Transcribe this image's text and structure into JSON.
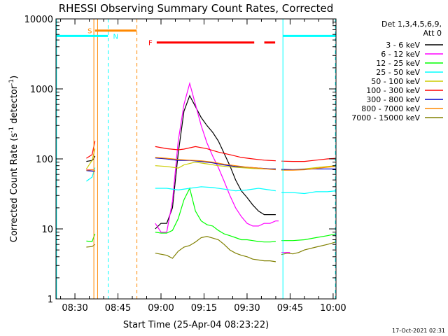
{
  "chart_data": {
    "type": "line",
    "title": "RHESSI Observing Summary Count Rates, Corrected",
    "xlabel": "Start Time (25-Apr-04 08:23:22)",
    "ylabel_main": "Corrected Count Rate (s",
    "ylabel_sup1": "-1",
    "ylabel_mid": " detector",
    "ylabel_sup2": "-1",
    "ylabel_end": ")",
    "footer": "17-Oct-2021 02:31",
    "x_unit": "minutes after 08:00",
    "xlim": [
      23.4,
      121
    ],
    "y_scale": "log",
    "ylim": [
      1,
      10000
    ],
    "x_ticks": [
      {
        "value": 30,
        "label": "08:30"
      },
      {
        "value": 45,
        "label": "08:45"
      },
      {
        "value": 60,
        "label": "09:00"
      },
      {
        "value": 75,
        "label": "09:15"
      },
      {
        "value": 90,
        "label": "09:30"
      },
      {
        "value": 105,
        "label": "09:45"
      },
      {
        "value": 120,
        "label": "10:00"
      }
    ],
    "y_ticks": [
      {
        "value": 1,
        "label": "1"
      },
      {
        "value": 10,
        "label": "10"
      },
      {
        "value": 100,
        "label": "100"
      },
      {
        "value": 1000,
        "label": "1000"
      },
      {
        "value": 10000,
        "label": "10000"
      }
    ],
    "legend": {
      "header": [
        "Det 1,3,4,5,6,9,",
        "Att 0"
      ],
      "position": "right"
    },
    "series": [
      {
        "name": "3 - 6 keV",
        "color": "#000000",
        "segments": [
          [
            [
              34,
              92
            ],
            [
              36,
              95
            ],
            [
              36.5,
              100
            ],
            [
              37,
              110
            ]
          ],
          [
            [
              58,
              10
            ],
            [
              60,
              12
            ],
            [
              62,
              12
            ],
            [
              64,
              20
            ],
            [
              66,
              120
            ],
            [
              68,
              480
            ],
            [
              70,
              800
            ],
            [
              72,
              560
            ],
            [
              74,
              390
            ],
            [
              76,
              300
            ],
            [
              78,
              240
            ],
            [
              80,
              180
            ],
            [
              82,
              120
            ],
            [
              84,
              80
            ],
            [
              86,
              50
            ],
            [
              88,
              35
            ],
            [
              90,
              28
            ],
            [
              92,
              22
            ],
            [
              94,
              18
            ],
            [
              96,
              16
            ],
            [
              98,
              16
            ],
            [
              100,
              16
            ]
          ]
        ]
      },
      {
        "name": "6 - 12 keV",
        "color": "#ff00ff",
        "segments": [
          [
            [
              34,
              70
            ],
            [
              36,
              70
            ],
            [
              36.5,
              70
            ]
          ],
          [
            [
              58,
              12
            ],
            [
              60,
              9
            ],
            [
              62,
              9
            ],
            [
              64,
              25
            ],
            [
              66,
              180
            ],
            [
              68,
              600
            ],
            [
              70,
              1200
            ],
            [
              72,
              600
            ],
            [
              74,
              300
            ],
            [
              76,
              170
            ],
            [
              78,
              110
            ],
            [
              80,
              75
            ],
            [
              82,
              48
            ],
            [
              84,
              30
            ],
            [
              86,
              20
            ],
            [
              88,
              15
            ],
            [
              90,
              12
            ],
            [
              92,
              11
            ],
            [
              94,
              11
            ],
            [
              96,
              12
            ],
            [
              98,
              12
            ],
            [
              100,
              13
            ],
            [
              101,
              13
            ]
          ],
          [
            [
              102,
              4.6
            ],
            [
              104,
              4.6
            ],
            [
              105,
              4.6
            ]
          ]
        ]
      },
      {
        "name": "12 - 25 keV",
        "color": "#00ff00",
        "segments": [
          [
            [
              34,
              6.7
            ],
            [
              36,
              6.6
            ],
            [
              37,
              8.5
            ]
          ],
          [
            [
              58,
              9
            ],
            [
              60,
              8.7
            ],
            [
              62,
              8.7
            ],
            [
              64,
              9.5
            ],
            [
              66,
              14
            ],
            [
              68,
              26
            ],
            [
              70,
              38
            ],
            [
              72,
              18
            ],
            [
              74,
              13
            ],
            [
              76,
              11.5
            ],
            [
              78,
              11
            ],
            [
              80,
              9.5
            ],
            [
              82,
              8.5
            ],
            [
              84,
              8
            ],
            [
              86,
              7.5
            ],
            [
              88,
              7
            ],
            [
              90,
              7
            ],
            [
              92,
              6.8
            ],
            [
              94,
              6.6
            ],
            [
              96,
              6.5
            ],
            [
              98,
              6.5
            ],
            [
              100,
              6.6
            ]
          ],
          [
            [
              102,
              6.8
            ],
            [
              106,
              6.8
            ],
            [
              110,
              7
            ],
            [
              114,
              7.5
            ],
            [
              118,
              8
            ],
            [
              121,
              8.5
            ]
          ]
        ]
      },
      {
        "name": "25 - 50 keV",
        "color": "#00ffff",
        "segments": [
          [
            [
              34,
              48
            ],
            [
              36,
              55
            ],
            [
              37,
              75
            ]
          ],
          [
            [
              58,
              38
            ],
            [
              62,
              38
            ],
            [
              66,
              36
            ],
            [
              70,
              38
            ],
            [
              74,
              40
            ],
            [
              78,
              39
            ],
            [
              82,
              37
            ],
            [
              86,
              35
            ],
            [
              90,
              36
            ],
            [
              94,
              38
            ],
            [
              98,
              36
            ],
            [
              100,
              35
            ]
          ],
          [
            [
              102,
              33
            ],
            [
              106,
              33
            ],
            [
              110,
              32
            ],
            [
              114,
              34
            ],
            [
              118,
              34
            ],
            [
              121,
              35
            ]
          ]
        ]
      },
      {
        "name": "50 - 100 keV",
        "color": "#cccc00",
        "segments": [
          [
            [
              34,
              72
            ],
            [
              36,
              95
            ],
            [
              37,
              140
            ]
          ],
          [
            [
              58,
              80
            ],
            [
              62,
              78
            ],
            [
              66,
              74
            ],
            [
              68,
              82
            ],
            [
              72,
              90
            ],
            [
              76,
              85
            ],
            [
              80,
              80
            ],
            [
              84,
              77
            ],
            [
              88,
              75
            ],
            [
              92,
              73
            ],
            [
              96,
              72
            ],
            [
              100,
              72
            ]
          ],
          [
            [
              102,
              71
            ],
            [
              106,
              70
            ],
            [
              110,
              72
            ],
            [
              114,
              75
            ],
            [
              118,
              78
            ],
            [
              121,
              80
            ]
          ]
        ]
      },
      {
        "name": "100 - 300 keV",
        "color": "#ff0000",
        "segments": [
          [
            [
              34,
              102
            ],
            [
              36,
              115
            ],
            [
              37,
              180
            ]
          ],
          [
            [
              58,
              150
            ],
            [
              62,
              140
            ],
            [
              66,
              135
            ],
            [
              68,
              138
            ],
            [
              72,
              150
            ],
            [
              76,
              140
            ],
            [
              80,
              125
            ],
            [
              84,
              115
            ],
            [
              88,
              105
            ],
            [
              92,
              100
            ],
            [
              96,
              96
            ],
            [
              100,
              94
            ]
          ],
          [
            [
              102,
              93
            ],
            [
              106,
              92
            ],
            [
              110,
              92
            ],
            [
              114,
              96
            ],
            [
              118,
              100
            ],
            [
              121,
              102
            ]
          ]
        ]
      },
      {
        "name": "300 - 800 keV",
        "color": "#0000cc",
        "segments": [
          [
            [
              34,
              68
            ],
            [
              36,
              67
            ],
            [
              37,
              66
            ]
          ],
          [
            [
              58,
              103
            ],
            [
              62,
              100
            ],
            [
              66,
              95
            ],
            [
              70,
              95
            ],
            [
              74,
              92
            ],
            [
              78,
              88
            ],
            [
              82,
              82
            ],
            [
              86,
              78
            ],
            [
              90,
              76
            ],
            [
              94,
              74
            ],
            [
              98,
              72
            ],
            [
              100,
              72
            ]
          ],
          [
            [
              102,
              71
            ],
            [
              106,
              70
            ],
            [
              110,
              71
            ],
            [
              114,
              72
            ],
            [
              118,
              72
            ],
            [
              121,
              72
            ]
          ]
        ]
      },
      {
        "name": "800 - 7000 keV",
        "color": "#ff8800",
        "segments": [
          [
            [
              34,
              69
            ],
            [
              36,
              70
            ],
            [
              37,
              68
            ]
          ],
          [
            [
              58,
              105
            ],
            [
              62,
              102
            ],
            [
              66,
              98
            ],
            [
              70,
              96
            ],
            [
              74,
              94
            ],
            [
              78,
              90
            ],
            [
              82,
              84
            ],
            [
              86,
              80
            ],
            [
              90,
              76
            ],
            [
              94,
              74
            ],
            [
              98,
              71
            ],
            [
              100,
              70
            ]
          ],
          [
            [
              102,
              69
            ],
            [
              106,
              69
            ],
            [
              110,
              70
            ],
            [
              114,
              73
            ],
            [
              118,
              76
            ],
            [
              121,
              78
            ]
          ]
        ]
      },
      {
        "name": "7000 - 15000 keV",
        "color": "#808000",
        "segments": [
          [
            [
              34,
              5.5
            ],
            [
              36,
              5.6
            ],
            [
              37,
              6
            ]
          ],
          [
            [
              58,
              4.5
            ],
            [
              62,
              4.2
            ],
            [
              64,
              3.8
            ],
            [
              66,
              4.8
            ],
            [
              68,
              5.5
            ],
            [
              70,
              5.8
            ],
            [
              72,
              6.5
            ],
            [
              74,
              7.5
            ],
            [
              76,
              7.8
            ],
            [
              78,
              7.4
            ],
            [
              80,
              7
            ],
            [
              82,
              6
            ],
            [
              84,
              5
            ],
            [
              86,
              4.5
            ],
            [
              88,
              4.2
            ],
            [
              90,
              4
            ],
            [
              92,
              3.7
            ],
            [
              94,
              3.6
            ],
            [
              96,
              3.5
            ],
            [
              98,
              3.5
            ],
            [
              100,
              3.4
            ]
          ],
          [
            [
              102,
              4.3
            ],
            [
              104,
              4.5
            ],
            [
              106,
              4.4
            ],
            [
              108,
              4.6
            ],
            [
              110,
              5
            ],
            [
              114,
              5.5
            ],
            [
              118,
              6
            ],
            [
              121,
              6.5
            ]
          ]
        ]
      }
    ],
    "intervals": [
      {
        "label": "S",
        "color": "#ff8800",
        "x": [
          37,
          51.5
        ],
        "y": 6800
      },
      {
        "label": "N",
        "color": "#00ffff",
        "x": [
          23.4,
          41.5
        ],
        "y": 5700
      },
      {
        "label": "N",
        "color": "#00ffff",
        "x": [
          102.5,
          121
        ],
        "y": 5700
      },
      {
        "label": "F",
        "color": "#ff0000",
        "x": [
          58.5,
          92.5
        ],
        "y": 4600
      },
      {
        "label": "F",
        "color": "#ff0000",
        "x": [
          96,
          99.8
        ],
        "y": 4600
      }
    ],
    "interval_labels": [
      {
        "text": "S",
        "color": "#ff8800",
        "x": 35.2,
        "y": 6800
      },
      {
        "text": "N",
        "color": "#00ffff",
        "x": 44.2,
        "y": 5700
      },
      {
        "text": "F",
        "color": "#ff0000",
        "x": 56.3,
        "y": 4600
      }
    ],
    "vertical_markers": [
      {
        "x": 23.6,
        "color": "#00ffff",
        "style": "solid"
      },
      {
        "x": 36.6,
        "color": "#ff8800",
        "style": "solid"
      },
      {
        "x": 37.9,
        "color": "#ff8800",
        "style": "solid"
      },
      {
        "x": 41.6,
        "color": "#00ffff",
        "style": "dashed"
      },
      {
        "x": 51.6,
        "color": "#ff8800",
        "style": "dashed"
      },
      {
        "x": 102.5,
        "color": "#00ffff",
        "style": "solid"
      },
      {
        "x": 120.8,
        "color": "#00ffff",
        "style": "dashed"
      }
    ]
  }
}
